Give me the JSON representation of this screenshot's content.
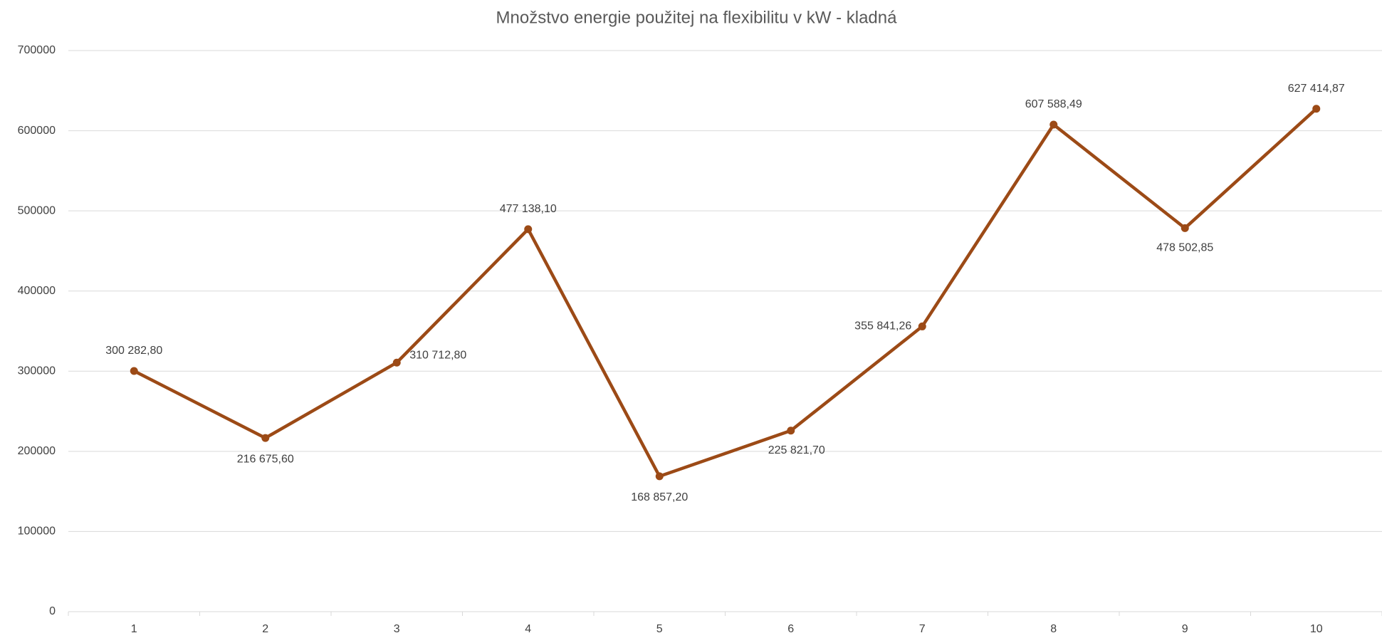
{
  "chart_data": {
    "type": "line",
    "title": "Množstvo energie použitej na flexibilitu v kW - kladná",
    "categories": [
      "1",
      "2",
      "3",
      "4",
      "5",
      "6",
      "7",
      "8",
      "9",
      "10"
    ],
    "values": [
      300282.8,
      216675.6,
      310712.8,
      477138.1,
      168857.2,
      225821.7,
      355841.26,
      607588.49,
      478502.85,
      627414.87
    ],
    "value_labels": [
      "300 282,80",
      "216 675,60",
      "310 712,80",
      "477 138,10",
      "168 857,20",
      "225 821,70",
      "355 841,26",
      "607 588,49",
      "478 502,85",
      "627 414,87"
    ],
    "color": "#9c4a16",
    "ylim": [
      0,
      700000
    ],
    "yticks": [
      0,
      100000,
      200000,
      300000,
      400000,
      500000,
      600000,
      700000
    ],
    "grid": true
  }
}
